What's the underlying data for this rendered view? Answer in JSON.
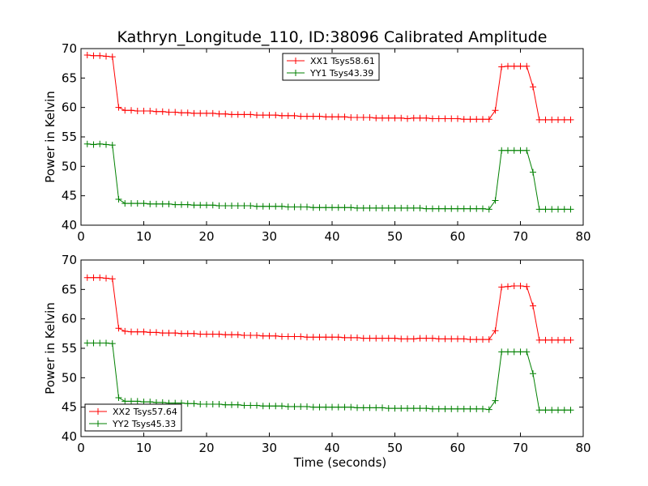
{
  "figure": {
    "title": "Kathryn_Longitude_110, ID:38096 Calibrated Amplitude"
  },
  "chart_data": [
    {
      "type": "line",
      "ylabel": "Power in Kelvin",
      "xlabel": "",
      "xlim": [
        0,
        80
      ],
      "ylim": [
        40,
        70
      ],
      "xticks": [
        0,
        10,
        20,
        30,
        40,
        50,
        60,
        70,
        80
      ],
      "yticks": [
        40,
        45,
        50,
        55,
        60,
        65,
        70
      ],
      "grid": false,
      "legend_position": "top-center",
      "series": [
        {
          "name": "XX1 Tsys58.61",
          "color": "#ff0000",
          "x": [
            1,
            2,
            3,
            4,
            5,
            6,
            7,
            8,
            9,
            10,
            11,
            12,
            13,
            14,
            15,
            16,
            17,
            18,
            19,
            20,
            21,
            22,
            23,
            24,
            25,
            26,
            27,
            28,
            29,
            30,
            31,
            32,
            33,
            34,
            35,
            36,
            37,
            38,
            39,
            40,
            41,
            42,
            43,
            44,
            45,
            46,
            47,
            48,
            49,
            50,
            51,
            52,
            53,
            54,
            55,
            56,
            57,
            58,
            59,
            60,
            61,
            62,
            63,
            64,
            65,
            66,
            67,
            68,
            69,
            70,
            71,
            72,
            73,
            74,
            75,
            76,
            77,
            78
          ],
          "y": [
            68.9,
            68.8,
            68.8,
            68.7,
            68.6,
            60.0,
            59.5,
            59.5,
            59.4,
            59.4,
            59.4,
            59.3,
            59.3,
            59.2,
            59.2,
            59.1,
            59.1,
            59.0,
            59.0,
            59.0,
            59.0,
            58.9,
            58.9,
            58.8,
            58.8,
            58.8,
            58.8,
            58.7,
            58.7,
            58.7,
            58.7,
            58.6,
            58.6,
            58.6,
            58.5,
            58.5,
            58.5,
            58.5,
            58.4,
            58.4,
            58.4,
            58.4,
            58.3,
            58.3,
            58.3,
            58.3,
            58.2,
            58.2,
            58.2,
            58.2,
            58.2,
            58.1,
            58.2,
            58.2,
            58.2,
            58.1,
            58.1,
            58.1,
            58.1,
            58.1,
            58.0,
            58.0,
            58.0,
            58.0,
            58.0,
            59.5,
            66.9,
            67.0,
            67.0,
            67.0,
            67.0,
            63.5,
            57.9,
            57.9,
            57.9,
            57.9,
            57.9,
            57.9
          ]
        },
        {
          "name": "YY1 Tsys43.39",
          "color": "#008000",
          "x": [
            1,
            2,
            3,
            4,
            5,
            6,
            7,
            8,
            9,
            10,
            11,
            12,
            13,
            14,
            15,
            16,
            17,
            18,
            19,
            20,
            21,
            22,
            23,
            24,
            25,
            26,
            27,
            28,
            29,
            30,
            31,
            32,
            33,
            34,
            35,
            36,
            37,
            38,
            39,
            40,
            41,
            42,
            43,
            44,
            45,
            46,
            47,
            48,
            49,
            50,
            51,
            52,
            53,
            54,
            55,
            56,
            57,
            58,
            59,
            60,
            61,
            62,
            63,
            64,
            65,
            66,
            67,
            68,
            69,
            70,
            71,
            72,
            73,
            74,
            75,
            76,
            77,
            78
          ],
          "y": [
            53.8,
            53.7,
            53.8,
            53.7,
            53.6,
            44.4,
            43.7,
            43.7,
            43.7,
            43.7,
            43.6,
            43.6,
            43.6,
            43.6,
            43.5,
            43.5,
            43.5,
            43.4,
            43.4,
            43.4,
            43.4,
            43.3,
            43.3,
            43.3,
            43.3,
            43.3,
            43.3,
            43.2,
            43.2,
            43.2,
            43.2,
            43.2,
            43.1,
            43.1,
            43.1,
            43.1,
            43.0,
            43.0,
            43.0,
            43.0,
            43.0,
            43.0,
            43.0,
            42.9,
            42.9,
            42.9,
            42.9,
            42.9,
            42.9,
            42.9,
            42.9,
            42.9,
            42.9,
            42.9,
            42.8,
            42.8,
            42.8,
            42.8,
            42.8,
            42.8,
            42.8,
            42.8,
            42.8,
            42.8,
            42.7,
            44.2,
            52.7,
            52.7,
            52.7,
            52.7,
            52.7,
            49.0,
            42.7,
            42.7,
            42.7,
            42.7,
            42.7,
            42.7
          ]
        }
      ]
    },
    {
      "type": "line",
      "ylabel": "Power in Kelvin",
      "xlabel": "Time (seconds)",
      "xlim": [
        0,
        80
      ],
      "ylim": [
        40,
        70
      ],
      "xticks": [
        0,
        10,
        20,
        30,
        40,
        50,
        60,
        70,
        80
      ],
      "yticks": [
        40,
        45,
        50,
        55,
        60,
        65,
        70
      ],
      "grid": false,
      "legend_position": "bottom-left",
      "series": [
        {
          "name": "XX2 Tsys57.64",
          "color": "#ff0000",
          "x": [
            1,
            2,
            3,
            4,
            5,
            6,
            7,
            8,
            9,
            10,
            11,
            12,
            13,
            14,
            15,
            16,
            17,
            18,
            19,
            20,
            21,
            22,
            23,
            24,
            25,
            26,
            27,
            28,
            29,
            30,
            31,
            32,
            33,
            34,
            35,
            36,
            37,
            38,
            39,
            40,
            41,
            42,
            43,
            44,
            45,
            46,
            47,
            48,
            49,
            50,
            51,
            52,
            53,
            54,
            55,
            56,
            57,
            58,
            59,
            60,
            61,
            62,
            63,
            64,
            65,
            66,
            67,
            68,
            69,
            70,
            71,
            72,
            73,
            74,
            75,
            76,
            77,
            78
          ],
          "y": [
            67.0,
            67.0,
            67.0,
            66.9,
            66.8,
            58.4,
            57.9,
            57.8,
            57.8,
            57.8,
            57.7,
            57.7,
            57.6,
            57.6,
            57.6,
            57.5,
            57.5,
            57.5,
            57.4,
            57.4,
            57.4,
            57.4,
            57.3,
            57.3,
            57.3,
            57.2,
            57.2,
            57.2,
            57.1,
            57.1,
            57.1,
            57.0,
            57.0,
            57.0,
            57.0,
            56.9,
            56.9,
            56.9,
            56.9,
            56.9,
            56.9,
            56.8,
            56.8,
            56.8,
            56.7,
            56.7,
            56.7,
            56.7,
            56.7,
            56.7,
            56.6,
            56.6,
            56.6,
            56.7,
            56.7,
            56.7,
            56.6,
            56.6,
            56.6,
            56.6,
            56.6,
            56.5,
            56.5,
            56.5,
            56.5,
            58.0,
            65.4,
            65.5,
            65.6,
            65.6,
            65.5,
            62.2,
            56.4,
            56.4,
            56.4,
            56.4,
            56.4,
            56.4
          ]
        },
        {
          "name": "YY2 Tsys45.33",
          "color": "#008000",
          "x": [
            1,
            2,
            3,
            4,
            5,
            6,
            7,
            8,
            9,
            10,
            11,
            12,
            13,
            14,
            15,
            16,
            17,
            18,
            19,
            20,
            21,
            22,
            23,
            24,
            25,
            26,
            27,
            28,
            29,
            30,
            31,
            32,
            33,
            34,
            35,
            36,
            37,
            38,
            39,
            40,
            41,
            42,
            43,
            44,
            45,
            46,
            47,
            48,
            49,
            50,
            51,
            52,
            53,
            54,
            55,
            56,
            57,
            58,
            59,
            60,
            61,
            62,
            63,
            64,
            65,
            66,
            67,
            68,
            69,
            70,
            71,
            72,
            73,
            74,
            75,
            76,
            77,
            78
          ],
          "y": [
            55.9,
            55.9,
            55.9,
            55.9,
            55.8,
            46.6,
            46.0,
            46.0,
            46.0,
            45.9,
            45.9,
            45.8,
            45.8,
            45.7,
            45.7,
            45.7,
            45.6,
            45.6,
            45.5,
            45.5,
            45.5,
            45.5,
            45.4,
            45.4,
            45.4,
            45.3,
            45.3,
            45.3,
            45.2,
            45.2,
            45.2,
            45.2,
            45.1,
            45.1,
            45.1,
            45.1,
            45.0,
            45.0,
            45.0,
            45.0,
            45.0,
            45.0,
            45.0,
            44.9,
            44.9,
            44.9,
            44.9,
            44.9,
            44.8,
            44.8,
            44.8,
            44.8,
            44.8,
            44.8,
            44.8,
            44.7,
            44.7,
            44.7,
            44.7,
            44.7,
            44.7,
            44.7,
            44.7,
            44.7,
            44.6,
            46.1,
            54.4,
            54.4,
            54.4,
            54.4,
            54.4,
            50.7,
            44.5,
            44.5,
            44.5,
            44.5,
            44.5,
            44.5
          ]
        }
      ]
    }
  ]
}
